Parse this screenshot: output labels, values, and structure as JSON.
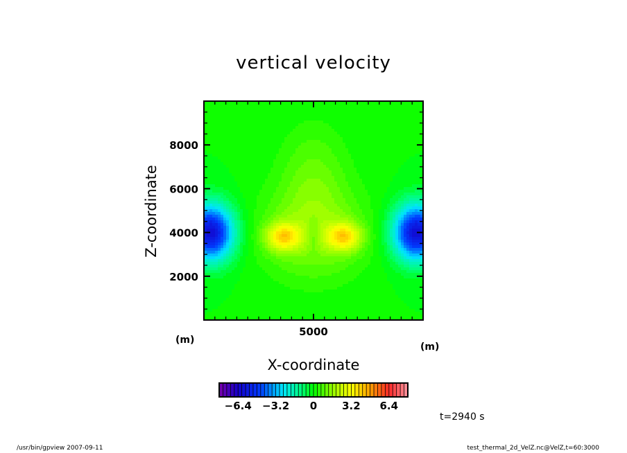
{
  "chart_data": {
    "type": "heatmap",
    "title": "vertical velocity",
    "xlabel": "X-coordinate",
    "ylabel": "Z-coordinate",
    "x_unit": "(m)",
    "y_unit": "(m)",
    "xlim": [
      0,
      10000
    ],
    "ylim": [
      0,
      10000
    ],
    "x_ticks": [
      {
        "value": 5000,
        "label": "5000"
      }
    ],
    "y_ticks": [
      {
        "value": 2000,
        "label": "2000"
      },
      {
        "value": 4000,
        "label": "4000"
      },
      {
        "value": 6000,
        "label": "6000"
      },
      {
        "value": 8000,
        "label": "8000"
      }
    ],
    "minor_tick_step": 500,
    "field_components": [
      {
        "amp": -6.0,
        "x": 300,
        "z": 4000,
        "sx": 750,
        "sz": 900
      },
      {
        "amp": -6.0,
        "x": 9700,
        "z": 4000,
        "sx": 750,
        "sz": 900
      },
      {
        "amp": 3.0,
        "x": 3600,
        "z": 3800,
        "sx": 550,
        "sz": 450
      },
      {
        "amp": 3.0,
        "x": 6400,
        "z": 3800,
        "sx": 550,
        "sz": 450
      },
      {
        "amp": 1.6,
        "x": 5000,
        "z": 4000,
        "sx": 1700,
        "sz": 1500
      },
      {
        "amp": 0.9,
        "x": 5000,
        "z": 6800,
        "sx": 1100,
        "sz": 1600
      },
      {
        "amp": -0.7,
        "x": 5000,
        "z": 3900,
        "sx": 200,
        "sz": 600
      }
    ],
    "colorbar": {
      "min": -8,
      "max": 8,
      "levels": 50,
      "ticks": [
        {
          "value": -6.4,
          "label": "−6.4"
        },
        {
          "value": -3.2,
          "label": "−3.2"
        },
        {
          "value": 0,
          "label": "0"
        },
        {
          "value": 3.2,
          "label": "3.2"
        },
        {
          "value": 6.4,
          "label": "6.4"
        }
      ]
    },
    "annotation_time": "t=2940 s"
  },
  "footer": {
    "left": "/usr/bin/gpview   2007-09-11",
    "right": "test_thermal_2d_VelZ.nc@VelZ,t=60:3000"
  }
}
